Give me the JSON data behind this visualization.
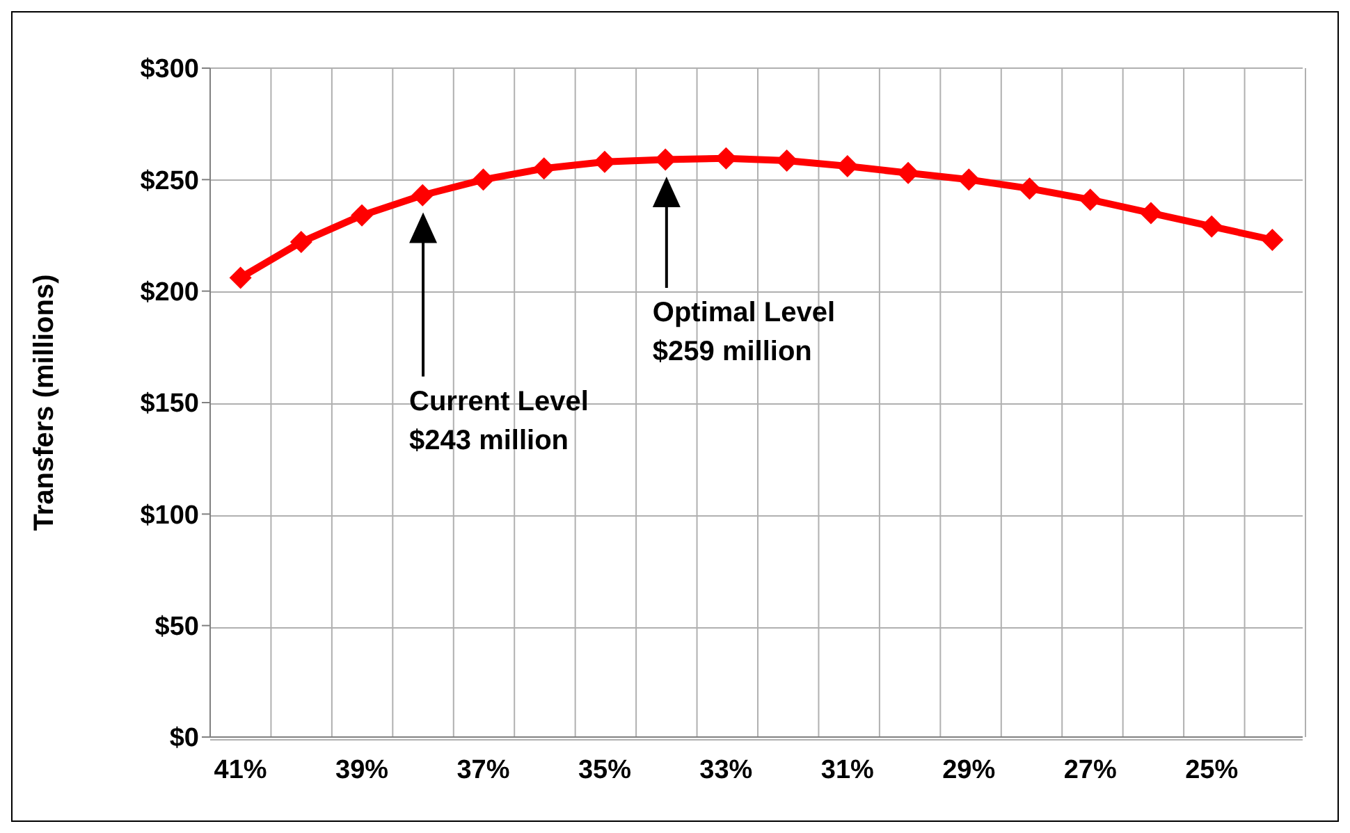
{
  "chart_data": {
    "type": "line",
    "ylabel": "Transfers (millions)",
    "categories": [
      "41%",
      null,
      "39%",
      null,
      "37%",
      null,
      "35%",
      null,
      "33%",
      null,
      "31%",
      null,
      "29%",
      null,
      "27%",
      null,
      "25%",
      null
    ],
    "series": [
      {
        "color": "#ff0000",
        "values": [
          206,
          222,
          234,
          243,
          250,
          255,
          258,
          259,
          259.5,
          258.5,
          256,
          253,
          250,
          246,
          241,
          235,
          229,
          223
        ]
      }
    ],
    "ylim": [
      0,
      300
    ],
    "yticks": [
      {
        "value": 0,
        "label": "$0"
      },
      {
        "value": 50,
        "label": "$50"
      },
      {
        "value": 100,
        "label": "$100"
      },
      {
        "value": 150,
        "label": "$150"
      },
      {
        "value": 200,
        "label": "$200"
      },
      {
        "value": 250,
        "label": "$250"
      },
      {
        "value": 300,
        "label": "$300"
      }
    ],
    "grid": true,
    "marker": "diamond",
    "line_style": "solid",
    "legend": false,
    "annotations": [
      "Current Level\n$243 million",
      "Optimal Level\n$259 million"
    ]
  }
}
